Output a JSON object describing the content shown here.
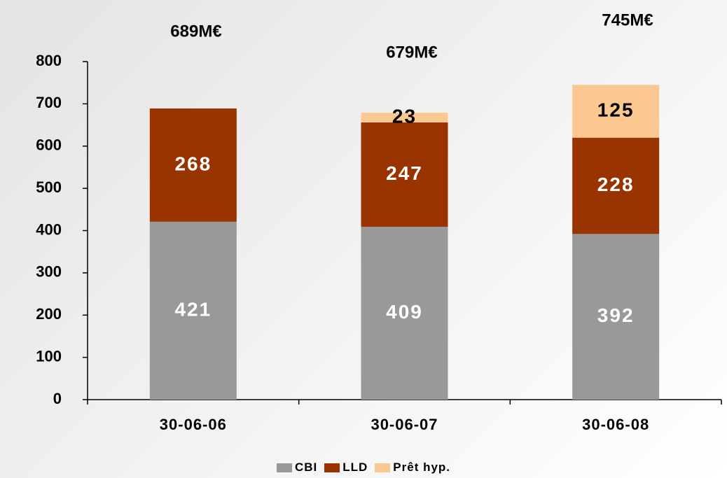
{
  "chart_data": {
    "type": "stacked-bar",
    "annotations": [
      "689M€",
      "679M€",
      "745M€"
    ],
    "categories": [
      "30-06-06",
      "30-06-07",
      "30-06-08"
    ],
    "series": [
      {
        "name": "CBI",
        "color": "#999999",
        "values": [
          421,
          409,
          392
        ]
      },
      {
        "name": "LLD",
        "color": "#993300",
        "values": [
          268,
          247,
          228
        ]
      },
      {
        "name": "Prêt hyp.",
        "color": "#fcc891",
        "values": [
          null,
          23,
          125
        ]
      }
    ],
    "ylim": [
      0,
      800
    ],
    "yticks": [
      0,
      100,
      200,
      300,
      400,
      500,
      600,
      700,
      800
    ],
    "grid": false
  }
}
